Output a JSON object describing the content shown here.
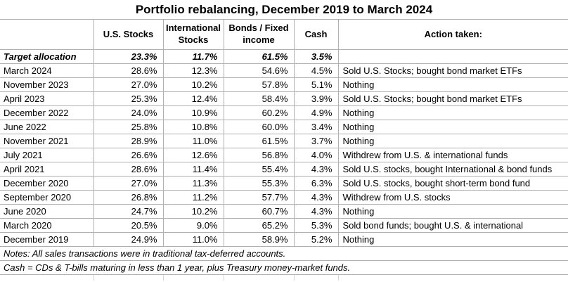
{
  "title": "Portfolio rebalancing, December 2019 to March 2024",
  "chart_data": {
    "type": "table",
    "title": "Portfolio rebalancing, December 2019 to March 2024",
    "columns": [
      "",
      "U.S. Stocks",
      "International Stocks",
      "Bonds / Fixed income",
      "Cash",
      "Action taken:"
    ],
    "target_row": [
      "Target allocation",
      "23.3%",
      "11.7%",
      "61.5%",
      "3.5%",
      ""
    ],
    "rows": [
      [
        "March 2024",
        "28.6%",
        "12.3%",
        "54.6%",
        "4.5%",
        "Sold U.S. Stocks; bought bond market ETFs"
      ],
      [
        "November 2023",
        "27.0%",
        "10.2%",
        "57.8%",
        "5.1%",
        "Nothing"
      ],
      [
        "April 2023",
        "25.3%",
        "12.4%",
        "58.4%",
        "3.9%",
        "Sold U.S. Stocks; bought bond market ETFs"
      ],
      [
        "December 2022",
        "24.0%",
        "10.9%",
        "60.2%",
        "4.9%",
        "Nothing"
      ],
      [
        "June 2022",
        "25.8%",
        "10.8%",
        "60.0%",
        "3.4%",
        "Nothing"
      ],
      [
        "November 2021",
        "28.9%",
        "11.0%",
        "61.5%",
        "3.7%",
        "Nothing"
      ],
      [
        "July 2021",
        "26.6%",
        "12.6%",
        "56.8%",
        "4.0%",
        "Withdrew from U.S. & international funds"
      ],
      [
        "April 2021",
        "28.6%",
        "11.4%",
        "55.4%",
        "4.3%",
        "Sold U.S. stocks, bought International & bond funds"
      ],
      [
        "December 2020",
        "27.0%",
        "11.3%",
        "55.3%",
        "6.3%",
        "Sold U.S. stocks, bought short-term bond fund"
      ],
      [
        "September 2020",
        "26.8%",
        "11.2%",
        "57.7%",
        "4.3%",
        "Withdrew from U.S. stocks"
      ],
      [
        "June 2020",
        "24.7%",
        "10.2%",
        "60.7%",
        "4.3%",
        "Nothing"
      ],
      [
        "March 2020",
        "20.5%",
        "9.0%",
        "65.2%",
        "5.3%",
        "Sold bond funds; bought U.S. & international"
      ],
      [
        "December 2019",
        "24.9%",
        "11.0%",
        "58.9%",
        "5.2%",
        "Nothing"
      ]
    ],
    "notes": [
      "Notes: All sales transactions were in traditional tax-deferred accounts.",
      "Cash = CDs & T-bills maturing in less than 1 year, plus Treasury money-market funds."
    ],
    "layout": {
      "legend": "none",
      "grid": "on",
      "value_format": "percent",
      "note_rows_span_full_width": true
    }
  },
  "colors": {
    "gridline": "#b0b0b0",
    "faint_gridline": "#d5d5d5",
    "text": "#000000",
    "background": "#ffffff"
  }
}
